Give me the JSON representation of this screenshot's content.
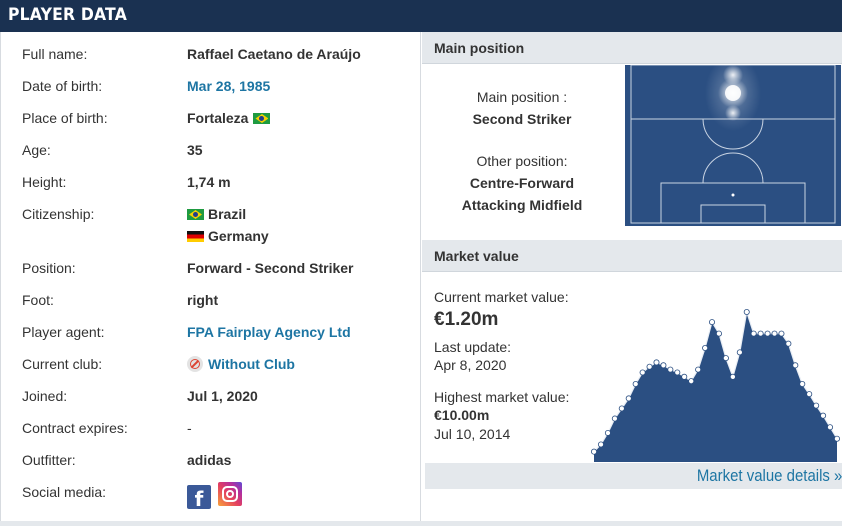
{
  "header": {
    "title": "PLAYER DATA"
  },
  "player": {
    "rows": [
      {
        "label": "Full name:",
        "value": "Raffael Caetano de Araújo"
      },
      {
        "label": "Date of birth:",
        "value": "Mar 28, 1985"
      },
      {
        "label": "Place of birth:",
        "value": "Fortaleza"
      },
      {
        "label": "Age:",
        "value": "35"
      },
      {
        "label": "Height:",
        "value": "1,74 m"
      },
      {
        "label": "Citizenship:",
        "value": "Brazil",
        "value2": "Germany"
      },
      {
        "label": "Position:",
        "value": "Forward - Second Striker"
      },
      {
        "label": "Foot:",
        "value": "right"
      },
      {
        "label": "Player agent:",
        "value": "FPA Fairplay Agency Ltd"
      },
      {
        "label": "Current club:",
        "value": "Without Club"
      },
      {
        "label": "Joined:",
        "value": "Jul 1, 2020"
      },
      {
        "label": "Contract expires:",
        "value": "-"
      },
      {
        "label": "Outfitter:",
        "value": "adidas"
      },
      {
        "label": "Social media:",
        "value": ""
      }
    ],
    "social": {
      "facebook_glyph": "f"
    }
  },
  "position": {
    "heading": "Main position",
    "main_label": "Main position :",
    "main_value": "Second Striker",
    "other_label": "Other position:",
    "other_values": [
      "Centre-Forward",
      "Attacking Midfield"
    ]
  },
  "market": {
    "heading": "Market value",
    "current_label": "Current market value:",
    "current_value": "€1.20m",
    "last_update_label": "Last update:",
    "last_update_value": "Apr 8, 2020",
    "highest_label": "Highest market value:",
    "highest_value": "€10.00m",
    "highest_date": "Jul 10, 2014",
    "details_link": "Market value details »"
  },
  "chart_data": {
    "type": "area",
    "title": "",
    "values": [
      0.3,
      0.8,
      1.6,
      2.6,
      3.3,
      4.0,
      5.0,
      5.8,
      6.2,
      6.5,
      6.3,
      6.0,
      5.8,
      5.5,
      5.2,
      6.0,
      7.5,
      9.3,
      8.5,
      6.8,
      5.5,
      7.2,
      10.0,
      8.5,
      8.5,
      8.5,
      8.5,
      8.5,
      7.8,
      6.3,
      5.0,
      4.3,
      3.5,
      2.8,
      2.0,
      1.2
    ]
  },
  "colors": {
    "header": "#1a3151",
    "pitch": "#2b4f82",
    "link": "#1d75a3",
    "chart_fill": "#2b4f82"
  }
}
